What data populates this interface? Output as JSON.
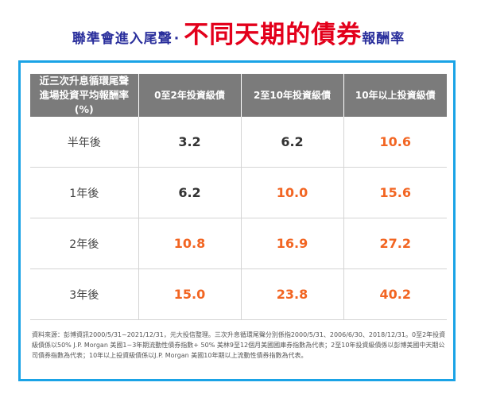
{
  "title": {
    "prefix": "聯準會進入尾聲",
    "dot": "·",
    "highlight": "不同天期的債券",
    "suffix": "報酬率"
  },
  "table": {
    "header_line1": "近三次升息循環尾聲",
    "header_line2": "進場投資平均報酬率(%)",
    "columns": [
      "0至2年投資級債",
      "2至10年投資級債",
      "10年以上投資級債"
    ],
    "rows": [
      {
        "label": "半年後",
        "values": [
          "3.2",
          "6.2",
          "10.6"
        ]
      },
      {
        "label": "1年後",
        "values": [
          "6.2",
          "10.0",
          "15.6"
        ]
      },
      {
        "label": "2年後",
        "values": [
          "10.8",
          "16.9",
          "27.2"
        ]
      },
      {
        "label": "3年後",
        "values": [
          "15.0",
          "23.8",
          "40.2"
        ]
      }
    ]
  },
  "footnote": "資料來源：彭博資訊2000/5/31~2021/12/31，元大投信整理。三次升息循環尾聲分別係指2000/5/31、2006/6/30、2018/12/31。0至2年投資級債係以50% J.P. Morgan 美國1~3年期流動性債券指數+ 50% 美林9至12個月美國國庫券指數為代表；2至10年投資級債係以彭博美國中天期公司債券指數為代表；10年以上投資級債係以J.P. Morgan 美國10年期以上流動性債券指數為代表。",
  "colors": {
    "title_blue": "#2a2f9c",
    "title_red": "#e3001b",
    "header_gray": "#7b7b7b",
    "highlight_orange": "#f26522",
    "border_blue": "#1aa3e6"
  }
}
